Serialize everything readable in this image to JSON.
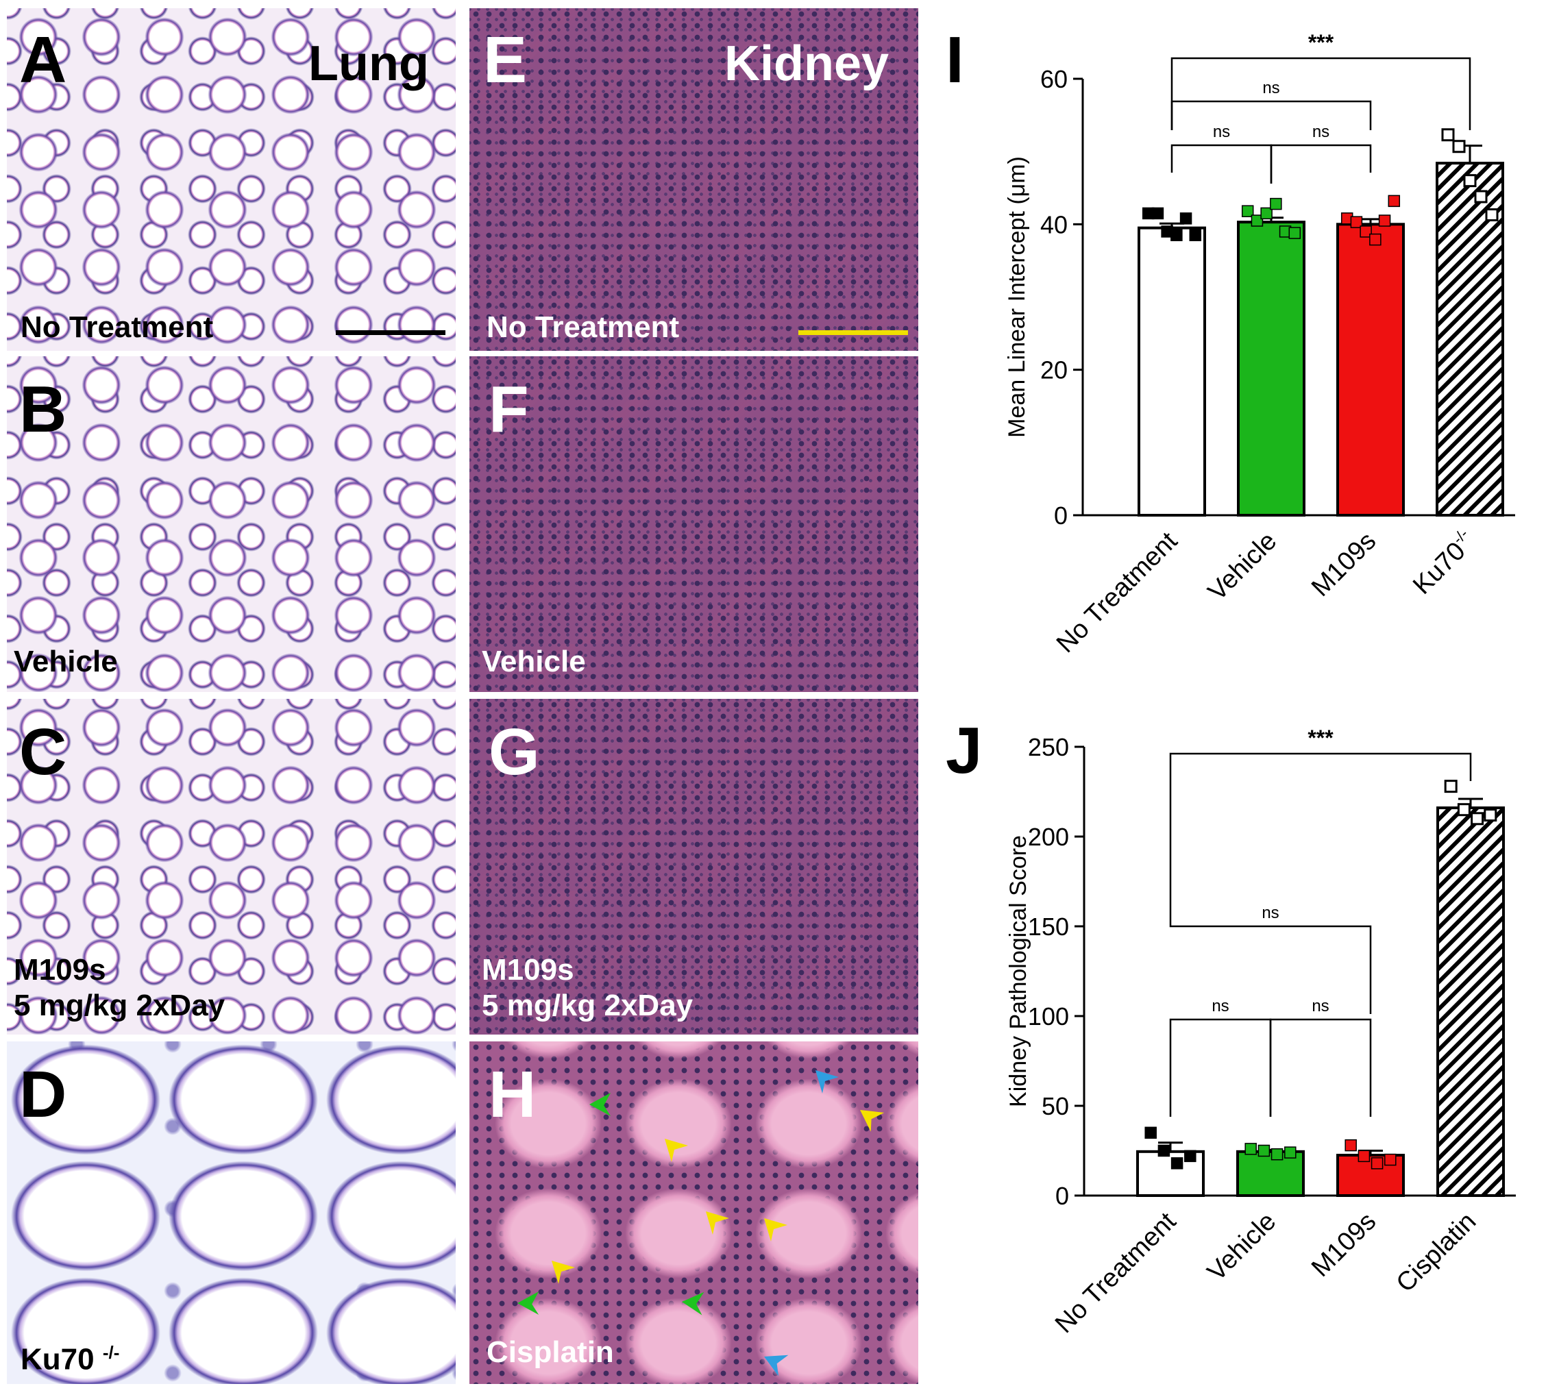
{
  "panels": {
    "A": {
      "letter": "A",
      "label": "No Treatment",
      "organ": "Lung"
    },
    "B": {
      "letter": "B",
      "label": "Vehicle"
    },
    "C": {
      "letter": "C",
      "label_line1": "M109s",
      "label_line2": "5 mg/kg 2xDay"
    },
    "D": {
      "letter": "D",
      "label": "Ku70",
      "label_sup": "-/-"
    },
    "E": {
      "letter": "E",
      "label": "No Treatment",
      "organ": "Kidney"
    },
    "F": {
      "letter": "F",
      "label": "Vehicle"
    },
    "G": {
      "letter": "G",
      "label_line1": "M109s",
      "label_line2": "5 mg/kg 2xDay"
    },
    "H": {
      "letter": "H",
      "label": "Cisplatin"
    }
  },
  "colors": {
    "lung_scalebar": "#000000",
    "kidney_scalebar": "#f0e000",
    "arrow_yellow": "#f5e000",
    "arrow_green": "#1ec41e",
    "arrow_blue": "#2f9fe0"
  },
  "chart_data": [
    {
      "type": "bar",
      "panel": "I",
      "ylabel": "Mean Linear Intercept (μm)",
      "ylim": [
        0,
        60
      ],
      "yticks": [
        "0",
        "20",
        "40",
        "60"
      ],
      "categories": [
        "No Treatment",
        "Vehicle",
        "M109s",
        "Ku70"
      ],
      "category_sup": [
        "",
        "",
        "",
        "-/-"
      ],
      "values": [
        39.5,
        40.3,
        40.0,
        48.4
      ],
      "errors": [
        0.6,
        0.6,
        0.7,
        2.4
      ],
      "colors": [
        "#ffffff",
        "#1bb51b",
        "#ee1111",
        "hatched"
      ],
      "points": [
        [
          41.5,
          41.5,
          39,
          38.5,
          40.8,
          38.5
        ],
        [
          41.8,
          40.5,
          41.5,
          42.8,
          39,
          38.8
        ],
        [
          40.8,
          40.3,
          39,
          37.9,
          40.5,
          43.2
        ],
        [
          52.3,
          50.7,
          46,
          43.8,
          41.3
        ]
      ],
      "brackets": [
        {
          "from": 0,
          "to": 3,
          "label": "***"
        },
        {
          "from": 0,
          "to": 2,
          "label": "ns"
        },
        {
          "from": 0,
          "to": 1,
          "label": "ns"
        },
        {
          "from": 1,
          "to": 2,
          "label": "ns"
        }
      ]
    },
    {
      "type": "bar",
      "panel": "J",
      "ylabel": "Kidney Pathological Score",
      "ylim": [
        0,
        250
      ],
      "yticks": [
        "0",
        "50",
        "100",
        "150",
        "200",
        "250"
      ],
      "categories": [
        "No Treatment",
        "Vehicle",
        "M109s",
        "Cisplatin"
      ],
      "category_sup": [
        "",
        "",
        "",
        ""
      ],
      "values": [
        24.5,
        24.5,
        22.5,
        216.0
      ],
      "errors": [
        5.0,
        1.0,
        2.5,
        5.0
      ],
      "colors": [
        "#ffffff",
        "#1bb51b",
        "#ee1111",
        "hatched"
      ],
      "points": [
        [
          35,
          25,
          18,
          22
        ],
        [
          26,
          25,
          23,
          24
        ],
        [
          28,
          22,
          18,
          20
        ],
        [
          228,
          215,
          210,
          212
        ]
      ],
      "brackets": [
        {
          "from": 0,
          "to": 3,
          "label": "***"
        },
        {
          "from": 0,
          "to": 2,
          "label": "ns"
        },
        {
          "from": 0,
          "to": 1,
          "label": "ns"
        },
        {
          "from": 1,
          "to": 2,
          "label": "ns"
        }
      ]
    }
  ],
  "chart_labels": {
    "I": "I",
    "J": "J"
  }
}
